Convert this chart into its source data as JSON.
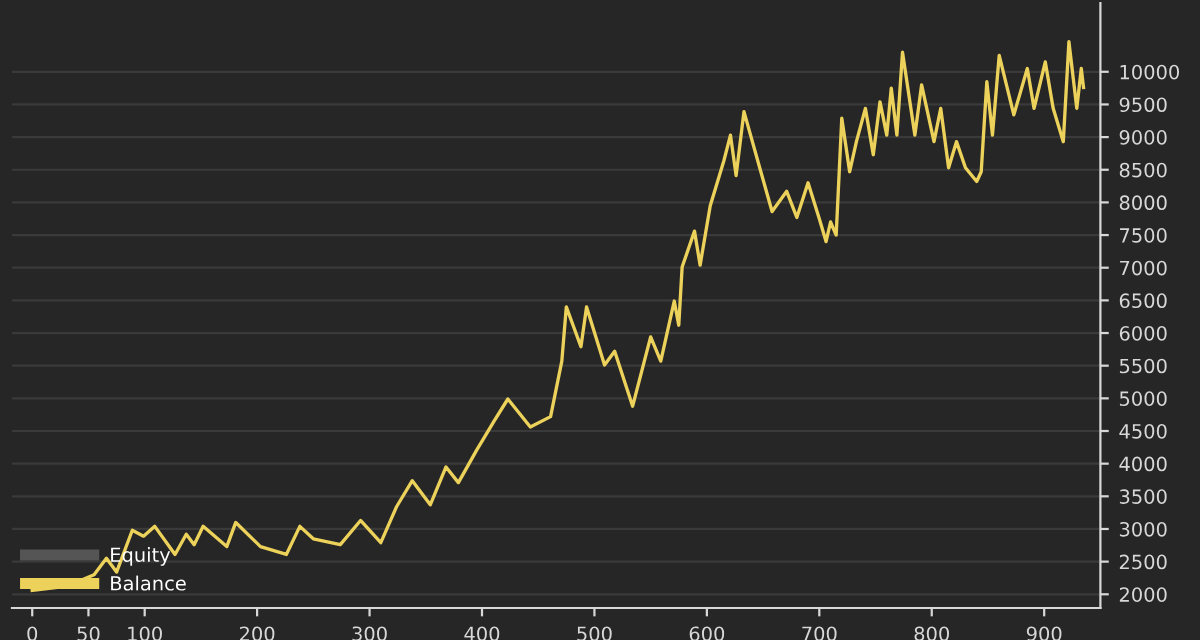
{
  "chart_data": {
    "type": "line",
    "x": [
      0,
      30,
      55,
      66,
      75,
      89,
      99,
      109,
      127,
      137,
      144,
      152,
      173,
      181,
      203,
      226,
      238,
      250,
      274,
      292,
      310,
      324,
      338,
      354,
      368,
      379,
      395,
      411,
      423,
      443,
      461,
      471,
      475,
      488,
      493,
      509,
      518,
      534,
      550,
      559,
      571,
      575,
      578,
      589,
      594,
      603,
      615,
      621,
      626,
      633,
      648,
      658,
      671,
      680,
      690,
      700,
      706,
      710,
      715,
      720,
      727,
      733,
      741,
      748,
      754,
      760,
      764,
      769,
      774,
      785,
      791,
      802,
      808,
      815,
      822,
      830,
      840,
      844,
      849,
      854,
      860,
      873,
      885,
      891,
      901,
      908,
      917,
      922,
      929,
      933,
      935
    ],
    "series": [
      {
        "name": "Equity",
        "color": "#555555",
        "values": [
          null,
          null,
          null,
          null,
          null,
          null,
          null,
          null,
          null,
          null,
          null,
          null,
          null,
          null,
          null,
          null,
          null,
          null,
          null,
          null,
          null,
          null,
          null,
          null,
          null,
          null,
          null,
          null,
          null,
          null,
          null,
          null,
          null,
          null,
          null,
          null,
          null,
          null,
          null,
          null,
          null,
          null,
          null,
          null,
          null,
          null,
          null,
          null,
          null,
          null,
          null,
          null,
          null,
          null,
          null,
          null,
          null,
          null,
          null,
          null,
          null,
          null,
          null,
          null,
          null,
          null,
          null,
          null,
          null,
          null,
          null,
          null,
          null,
          null,
          null,
          null,
          null,
          null,
          null,
          null,
          null,
          null,
          null,
          null,
          null,
          null,
          null,
          null,
          null,
          null,
          null
        ]
      },
      {
        "name": "Balance",
        "color": "#ecd25a",
        "values": [
          2060,
          2120,
          2300,
          2550,
          2340,
          2980,
          2890,
          3040,
          2610,
          2920,
          2760,
          3040,
          2730,
          3100,
          2730,
          2610,
          3040,
          2850,
          2760,
          3130,
          2790,
          3340,
          3740,
          3370,
          3950,
          3710,
          4200,
          4660,
          4990,
          4560,
          4720,
          5570,
          6400,
          5790,
          6400,
          5510,
          5720,
          4880,
          5940,
          5570,
          6490,
          6120,
          7010,
          7560,
          7040,
          7950,
          8630,
          9030,
          8410,
          9390,
          8470,
          7860,
          8170,
          7770,
          8300,
          7750,
          7400,
          7700,
          7500,
          9290,
          8470,
          8930,
          9440,
          8730,
          9540,
          9030,
          9750,
          9030,
          10300,
          9030,
          9800,
          8930,
          9440,
          8530,
          8930,
          8530,
          8320,
          8470,
          9850,
          9030,
          10250,
          9340,
          10050,
          9440,
          10150,
          9440,
          8930,
          10460,
          9440,
          10050,
          9760
        ]
      }
    ],
    "xlim": [
      -18,
      950
    ],
    "xticks": [
      0,
      50,
      100,
      200,
      300,
      400,
      500,
      600,
      700,
      800,
      900
    ],
    "ylim": [
      1790,
      11050
    ],
    "yticks": [
      2000,
      2500,
      3000,
      3500,
      4000,
      4500,
      5000,
      5500,
      6000,
      6500,
      7000,
      7500,
      8000,
      8500,
      9000,
      9500,
      10000
    ],
    "grid": "y",
    "legend": "bottom left"
  }
}
